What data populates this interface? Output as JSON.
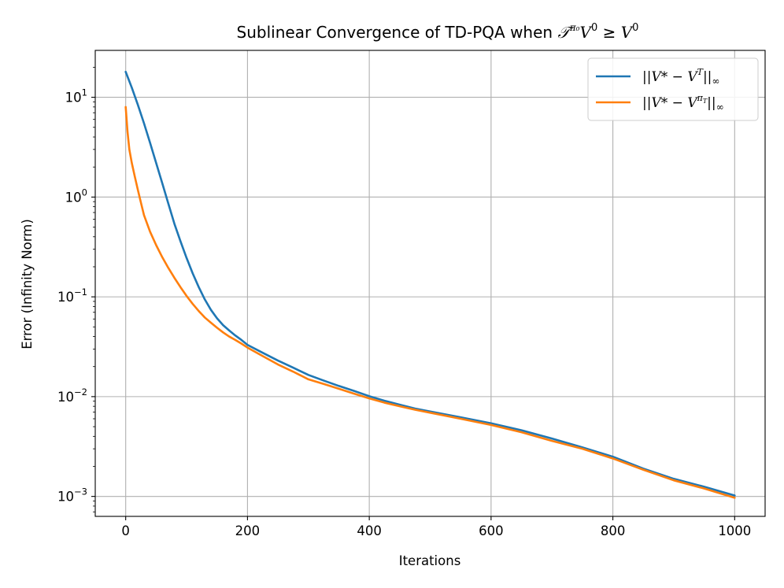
{
  "chart_data": {
    "type": "line",
    "title": "Sublinear Convergence of TD-PQA when 𝒯^π₀V⁰ ≥ V⁰",
    "title_parts": {
      "prefix": "Sublinear Convergence of TD-PQA when ",
      "op": "𝒯",
      "op_sup": "π₀",
      "v1": "V",
      "v1_sup": "0",
      "rel": " ≥ ",
      "v2": "V",
      "v2_sup": "0"
    },
    "xlabel": "Iterations",
    "ylabel": "Error (Infinity Norm)",
    "xlim": [
      -50,
      1050
    ],
    "ylim_log10": [
      -3.2,
      1.47
    ],
    "y_scale": "log",
    "grid": true,
    "legend_position": "top-right",
    "x_ticks": [
      {
        "value": 0,
        "label": "0"
      },
      {
        "value": 200,
        "label": "200"
      },
      {
        "value": 400,
        "label": "400"
      },
      {
        "value": 600,
        "label": "600"
      },
      {
        "value": 800,
        "label": "800"
      },
      {
        "value": 1000,
        "label": "1000"
      }
    ],
    "y_ticks": [
      {
        "exp": 1,
        "base": "10",
        "sup": "1"
      },
      {
        "exp": 0,
        "base": "10",
        "sup": "0"
      },
      {
        "exp": -1,
        "base": "10",
        "sup": "−1"
      },
      {
        "exp": -2,
        "base": "10",
        "sup": "−2"
      },
      {
        "exp": -3,
        "base": "10",
        "sup": "−3"
      }
    ],
    "series": [
      {
        "name": "||V* − V^T||∞",
        "legend": {
          "open": "||",
          "v1": "V",
          "mid": "* − ",
          "v2": "V",
          "sup": "T",
          "close": "||",
          "sub": "∞"
        },
        "color": "#1f77b4",
        "x": [
          0,
          10,
          20,
          30,
          40,
          50,
          60,
          70,
          80,
          90,
          100,
          110,
          120,
          130,
          140,
          150,
          160,
          170,
          180,
          190,
          200,
          225,
          250,
          275,
          300,
          325,
          350,
          375,
          400,
          425,
          450,
          475,
          500,
          550,
          600,
          650,
          700,
          750,
          800,
          850,
          900,
          950,
          1000
        ],
        "y": [
          18.0,
          12.5,
          8.4,
          5.5,
          3.5,
          2.2,
          1.38,
          0.86,
          0.54,
          0.36,
          0.245,
          0.172,
          0.125,
          0.094,
          0.074,
          0.061,
          0.052,
          0.046,
          0.041,
          0.037,
          0.033,
          0.0275,
          0.023,
          0.0195,
          0.0165,
          0.0145,
          0.0128,
          0.0114,
          0.0101,
          0.0091,
          0.0083,
          0.0076,
          0.0071,
          0.0062,
          0.0054,
          0.0046,
          0.0038,
          0.0031,
          0.0025,
          0.0019,
          0.0015,
          0.00125,
          0.00102
        ]
      },
      {
        "name": "||V* − V^πT||∞",
        "legend": {
          "open": "||",
          "v1": "V",
          "mid": "* − ",
          "v2": "V",
          "sup": "π",
          "supsub": "T",
          "close": "||",
          "sub": "∞"
        },
        "color": "#ff7f0e",
        "x": [
          0,
          3,
          6,
          10,
          15,
          20,
          25,
          30,
          40,
          50,
          60,
          70,
          80,
          90,
          100,
          110,
          120,
          130,
          140,
          150,
          160,
          170,
          180,
          190,
          200,
          225,
          250,
          275,
          300,
          325,
          350,
          375,
          400,
          425,
          450,
          475,
          500,
          550,
          600,
          650,
          700,
          750,
          800,
          850,
          900,
          950,
          1000
        ],
        "y": [
          8.0,
          4.5,
          3.0,
          2.2,
          1.6,
          1.18,
          0.88,
          0.66,
          0.45,
          0.33,
          0.25,
          0.195,
          0.155,
          0.125,
          0.102,
          0.085,
          0.072,
          0.062,
          0.055,
          0.049,
          0.044,
          0.04,
          0.037,
          0.034,
          0.031,
          0.0255,
          0.021,
          0.0178,
          0.0149,
          0.0134,
          0.012,
          0.0107,
          0.0096,
          0.0087,
          0.008,
          0.0074,
          0.0069,
          0.006,
          0.0052,
          0.0044,
          0.0036,
          0.003,
          0.0024,
          0.00185,
          0.00145,
          0.0012,
          0.00097
        ]
      }
    ]
  }
}
